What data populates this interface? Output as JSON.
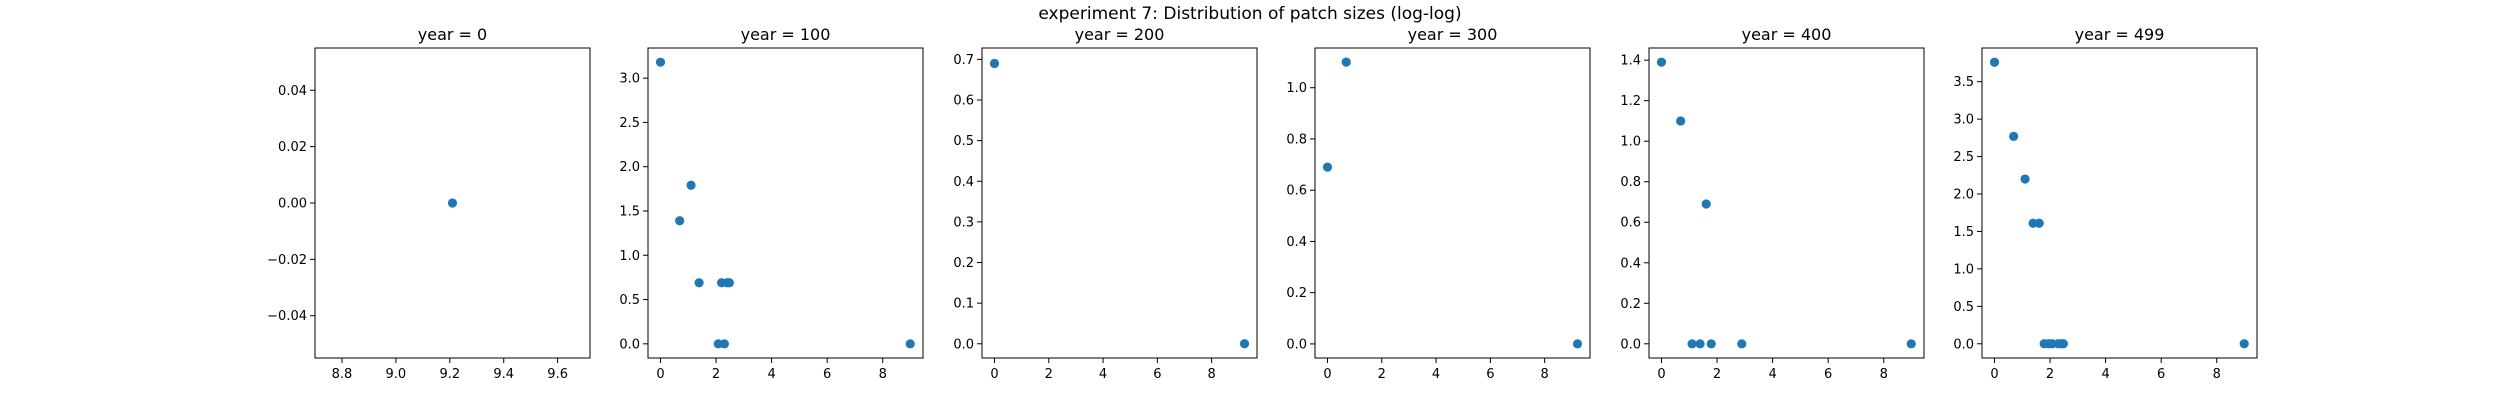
{
  "suptitle": "experiment 7: Distribution of patch sizes (log-log)",
  "colors": {
    "marker": "#1f77b4",
    "axis": "#000000"
  },
  "chart_data": [
    {
      "type": "scatter",
      "title": "year = 0",
      "xlim": [
        8.7,
        9.72
      ],
      "ylim": [
        -0.055,
        0.055
      ],
      "xticks": [
        8.8,
        9.0,
        9.2,
        9.4,
        9.6
      ],
      "xtick_labels": [
        "8.8",
        "9.0",
        "9.2",
        "9.4",
        "9.6"
      ],
      "yticks": [
        -0.04,
        -0.02,
        0.0,
        0.02,
        0.04
      ],
      "ytick_labels": [
        "−0.04",
        "−0.02",
        "0.00",
        "0.02",
        "0.04"
      ],
      "points": [
        [
          9.21,
          0.0
        ]
      ]
    },
    {
      "type": "scatter",
      "title": "year = 100",
      "xlim": [
        -0.45,
        9.45
      ],
      "ylim": [
        -0.16,
        3.34
      ],
      "xticks": [
        0,
        2,
        4,
        6,
        8
      ],
      "xtick_labels": [
        "0",
        "2",
        "4",
        "6",
        "8"
      ],
      "yticks": [
        0.0,
        0.5,
        1.0,
        1.5,
        2.0,
        2.5,
        3.0
      ],
      "ytick_labels": [
        "0.0",
        "0.5",
        "1.0",
        "1.5",
        "2.0",
        "2.5",
        "3.0"
      ],
      "points": [
        [
          0,
          3.18
        ],
        [
          0.69,
          1.39
        ],
        [
          1.1,
          1.79
        ],
        [
          1.39,
          0.69
        ],
        [
          2.08,
          0.0
        ],
        [
          2.2,
          0.69
        ],
        [
          2.3,
          0.0
        ],
        [
          2.4,
          0.69
        ],
        [
          2.48,
          0.69
        ],
        [
          8.99,
          0.0
        ]
      ]
    },
    {
      "type": "scatter",
      "title": "year = 200",
      "xlim": [
        -0.46,
        9.67
      ],
      "ylim": [
        -0.035,
        0.728
      ],
      "xticks": [
        0,
        2,
        4,
        6,
        8
      ],
      "xtick_labels": [
        "0",
        "2",
        "4",
        "6",
        "8"
      ],
      "yticks": [
        0.0,
        0.1,
        0.2,
        0.3,
        0.4,
        0.5,
        0.6,
        0.7
      ],
      "ytick_labels": [
        "0.0",
        "0.1",
        "0.2",
        "0.3",
        "0.4",
        "0.5",
        "0.6",
        "0.7"
      ],
      "points": [
        [
          0,
          0.69
        ],
        [
          9.21,
          0.0
        ]
      ]
    },
    {
      "type": "scatter",
      "title": "year = 300",
      "xlim": [
        -0.46,
        9.67
      ],
      "ylim": [
        -0.055,
        1.155
      ],
      "xticks": [
        0,
        2,
        4,
        6,
        8
      ],
      "xtick_labels": [
        "0",
        "2",
        "4",
        "6",
        "8"
      ],
      "yticks": [
        0.0,
        0.2,
        0.4,
        0.6,
        0.8,
        1.0
      ],
      "ytick_labels": [
        "0.0",
        "0.2",
        "0.4",
        "0.6",
        "0.8",
        "1.0"
      ],
      "points": [
        [
          0,
          0.69
        ],
        [
          0.69,
          1.1
        ],
        [
          9.21,
          0.0
        ]
      ]
    },
    {
      "type": "scatter",
      "title": "year = 400",
      "xlim": [
        -0.45,
        9.45
      ],
      "ylim": [
        -0.07,
        1.46
      ],
      "xticks": [
        0,
        2,
        4,
        6,
        8
      ],
      "xtick_labels": [
        "0",
        "2",
        "4",
        "6",
        "8"
      ],
      "yticks": [
        0.0,
        0.2,
        0.4,
        0.6,
        0.8,
        1.0,
        1.2,
        1.4
      ],
      "ytick_labels": [
        "0.0",
        "0.2",
        "0.4",
        "0.6",
        "0.8",
        "1.0",
        "1.2",
        "1.4"
      ],
      "points": [
        [
          0,
          1.39
        ],
        [
          0.69,
          1.1
        ],
        [
          1.1,
          0.0
        ],
        [
          1.39,
          0.0
        ],
        [
          1.61,
          0.69
        ],
        [
          1.79,
          0.0
        ],
        [
          2.89,
          0.0
        ],
        [
          8.99,
          0.0
        ]
      ]
    },
    {
      "type": "scatter",
      "title": "year = 499",
      "xlim": [
        -0.45,
        9.45
      ],
      "ylim": [
        -0.19,
        3.95
      ],
      "xticks": [
        0,
        2,
        4,
        6,
        8
      ],
      "xtick_labels": [
        "0",
        "2",
        "4",
        "6",
        "8"
      ],
      "yticks": [
        0.0,
        0.5,
        1.0,
        1.5,
        2.0,
        2.5,
        3.0,
        3.5
      ],
      "ytick_labels": [
        "0.0",
        "0.5",
        "1.0",
        "1.5",
        "2.0",
        "2.5",
        "3.0",
        "3.5"
      ],
      "points": [
        [
          0,
          3.76
        ],
        [
          0.69,
          2.77
        ],
        [
          1.1,
          2.2
        ],
        [
          1.39,
          1.61
        ],
        [
          1.61,
          1.61
        ],
        [
          1.79,
          0.0
        ],
        [
          1.95,
          0.0
        ],
        [
          2.08,
          0.0
        ],
        [
          2.3,
          0.0
        ],
        [
          2.4,
          0.0
        ],
        [
          2.48,
          0.0
        ],
        [
          8.99,
          0.0
        ]
      ]
    }
  ]
}
